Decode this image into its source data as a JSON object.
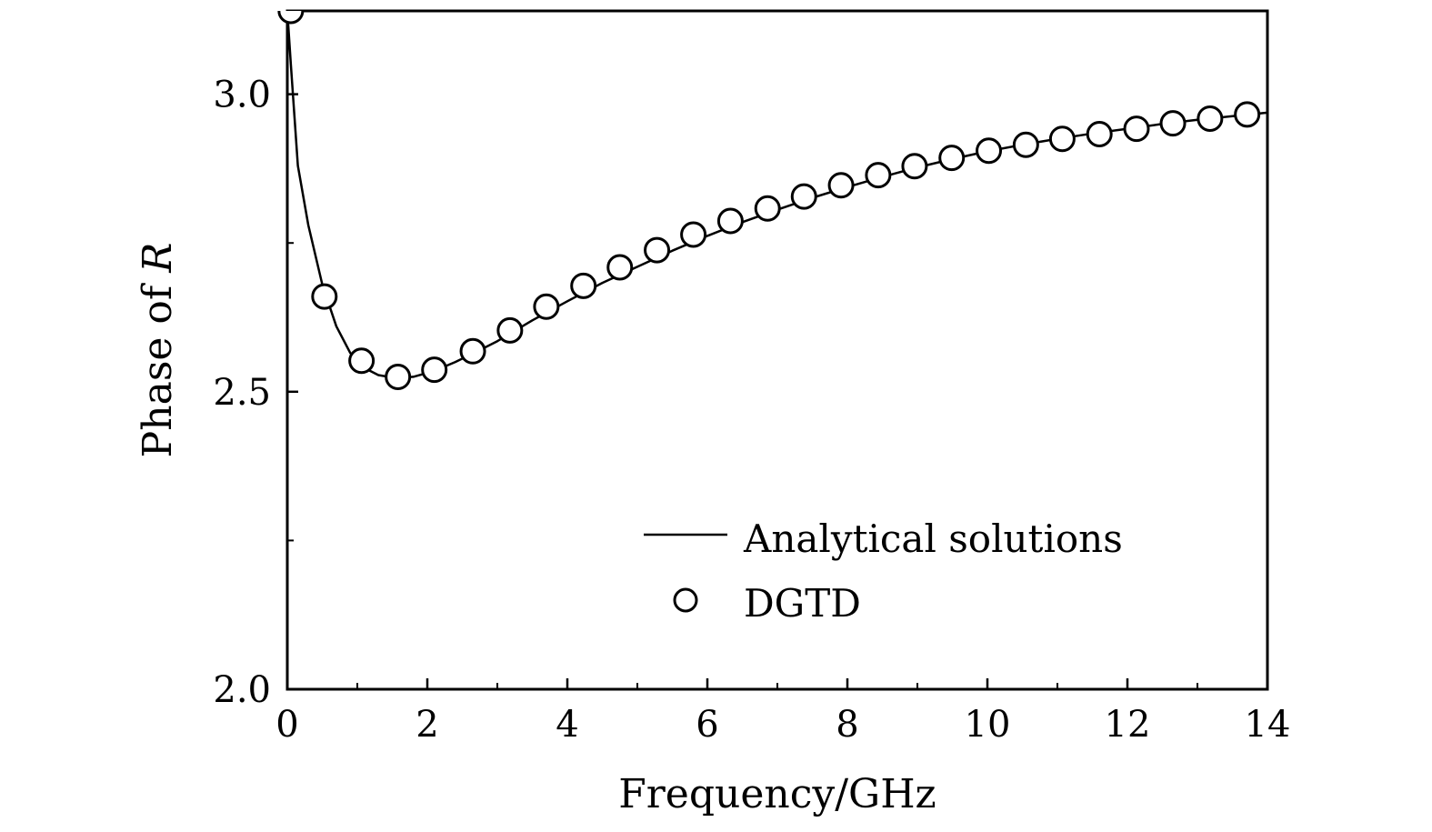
{
  "chart_data": {
    "type": "line",
    "title": "",
    "xlabel": "Frequency/GHz",
    "ylabel_text": "Phase of ",
    "ylabel_symbol": "R",
    "xlim": [
      0,
      14
    ],
    "ylim": [
      2.0,
      3.14
    ],
    "x_ticks": [
      0,
      2,
      4,
      6,
      8,
      10,
      12,
      14
    ],
    "x_tick_labels": [
      "0",
      "2",
      "4",
      "6",
      "8",
      "10",
      "12",
      "14"
    ],
    "y_ticks": [
      2.0,
      2.5,
      3.0
    ],
    "y_tick_labels": [
      "2.0",
      "2.5",
      "3.0"
    ],
    "y_minor_ticks": [
      2.25,
      2.75
    ],
    "x_minor_ticks": [
      1,
      3,
      5,
      7,
      9,
      11,
      13
    ],
    "grid": false,
    "legend_position": "lower-right",
    "series": [
      {
        "name": "Analytical solutions",
        "style": "line",
        "x": [
          0.0,
          0.05,
          0.15,
          0.3,
          0.5,
          0.7,
          0.9,
          1.1,
          1.3,
          1.55,
          1.8,
          2.1,
          2.4,
          2.7,
          3.0,
          3.5,
          4.0,
          4.5,
          5.0,
          5.5,
          6.0,
          6.5,
          7.0,
          7.5,
          8.0,
          8.5,
          9.0,
          9.5,
          10.0,
          10.5,
          11.0,
          11.5,
          12.0,
          12.5,
          13.0,
          13.5,
          14.0
        ],
        "y": [
          3.14,
          3.05,
          2.88,
          2.78,
          2.68,
          2.61,
          2.565,
          2.54,
          2.528,
          2.523,
          2.525,
          2.535,
          2.55,
          2.567,
          2.585,
          2.62,
          2.652,
          2.683,
          2.71,
          2.737,
          2.762,
          2.785,
          2.806,
          2.826,
          2.844,
          2.861,
          2.877,
          2.891,
          2.904,
          2.915,
          2.925,
          2.934,
          2.942,
          2.95,
          2.957,
          2.963,
          2.969
        ]
      },
      {
        "name": "DGTD",
        "style": "open-circle",
        "x": [
          0.05,
          0.53,
          1.06,
          1.58,
          2.1,
          2.65,
          3.18,
          3.7,
          4.23,
          4.75,
          5.28,
          5.8,
          6.33,
          6.86,
          7.38,
          7.91,
          8.44,
          8.96,
          9.49,
          10.02,
          10.55,
          11.07,
          11.6,
          12.13,
          12.65,
          13.18,
          13.71
        ],
        "y": [
          3.14,
          2.66,
          2.552,
          2.525,
          2.537,
          2.568,
          2.603,
          2.643,
          2.678,
          2.709,
          2.738,
          2.764,
          2.787,
          2.808,
          2.828,
          2.847,
          2.864,
          2.879,
          2.893,
          2.905,
          2.915,
          2.925,
          2.933,
          2.942,
          2.951,
          2.959,
          2.966
        ]
      }
    ]
  }
}
